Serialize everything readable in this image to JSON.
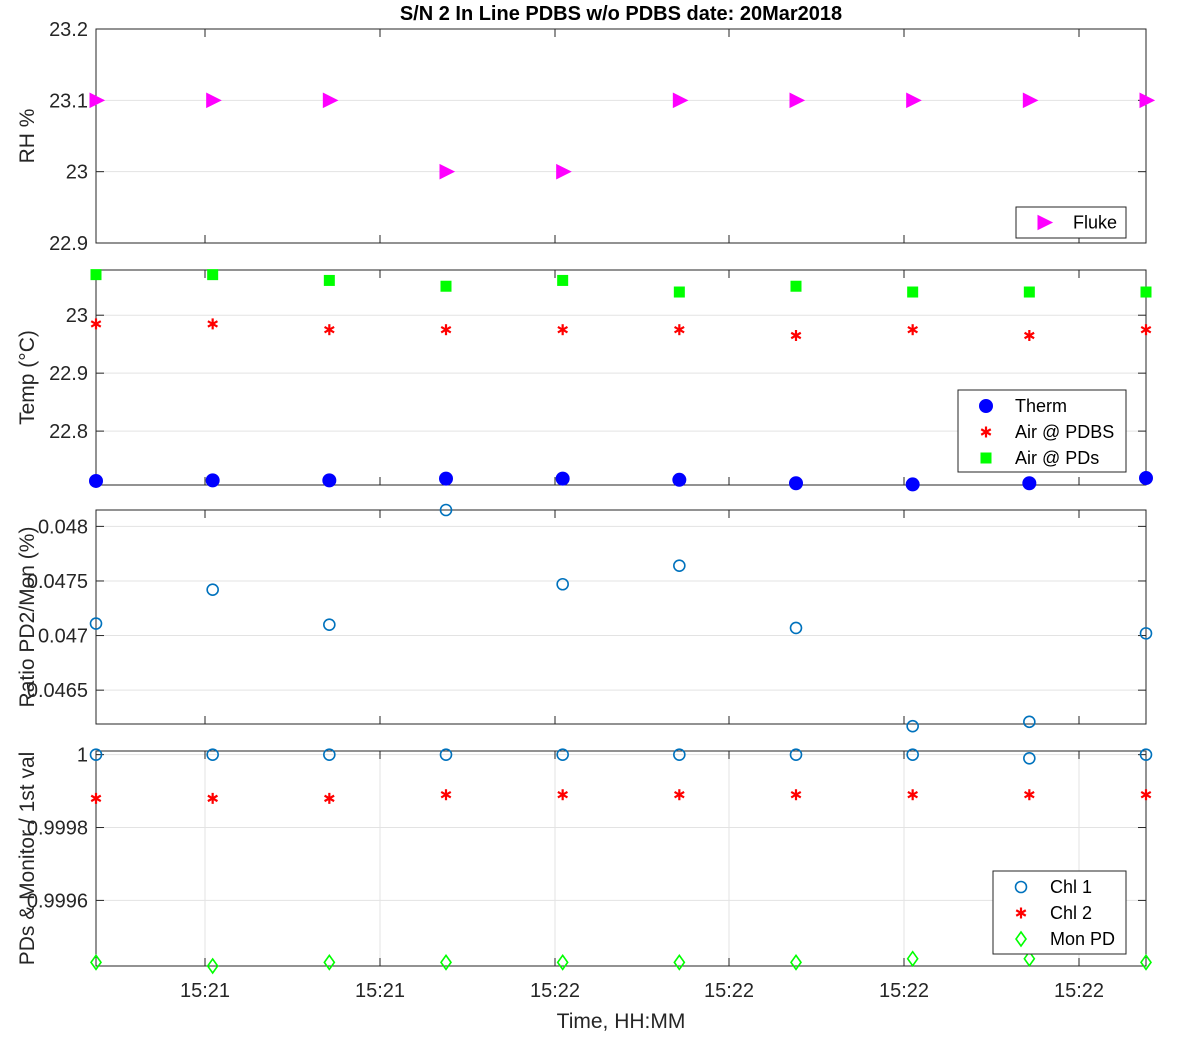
{
  "figure": {
    "title": "S/N 2 In Line PDBS w/o PDBS date: 20Mar2018",
    "xlabel": "Time, HH:MM",
    "xtick_labels": [
      "15:21",
      "15:21",
      "15:22",
      "15:22",
      "15:22",
      "15:22"
    ]
  },
  "chart_data": [
    {
      "type": "scatter",
      "ylabel": "RH %",
      "ylim": [
        22.9,
        23.2
      ],
      "yticks": [
        22.9,
        23,
        23.1,
        23.2
      ],
      "ytick_labels": [
        "22.9",
        "23",
        "23.1",
        "23.2"
      ],
      "grid": true,
      "legend_position": "bottom-right",
      "x_index": [
        0,
        1,
        2,
        3,
        4,
        5,
        6,
        7,
        8,
        9
      ],
      "series": [
        {
          "name": "Fluke",
          "marker": "triangle-right",
          "color": "#ff00ff",
          "values": [
            23.1,
            23.1,
            23.1,
            23.0,
            23.0,
            23.1,
            23.1,
            23.1,
            23.1,
            23.1
          ]
        }
      ]
    },
    {
      "type": "scatter",
      "ylabel": "Temp (°C)",
      "ylim": [
        22.707,
        23.078
      ],
      "yticks": [
        22.8,
        22.9,
        23
      ],
      "ytick_labels": [
        "22.8",
        "22.9",
        "23"
      ],
      "grid": true,
      "legend_position": "bottom-right",
      "x_index": [
        0,
        1,
        2,
        3,
        4,
        5,
        6,
        7,
        8,
        9
      ],
      "series": [
        {
          "name": "Therm",
          "marker": "filled-circle",
          "color": "#0000ff",
          "values": [
            22.714,
            22.715,
            22.715,
            22.718,
            22.718,
            22.716,
            22.71,
            22.708,
            22.71,
            22.719
          ]
        },
        {
          "name": "Air @ PDBS",
          "marker": "asterisk",
          "color": "#ff0000",
          "values": [
            22.985,
            22.985,
            22.975,
            22.975,
            22.975,
            22.975,
            22.965,
            22.975,
            22.965,
            22.975
          ]
        },
        {
          "name": "Air @ PDs",
          "marker": "filled-square",
          "color": "#00ff00",
          "values": [
            23.07,
            23.07,
            23.06,
            23.05,
            23.06,
            23.04,
            23.05,
            23.04,
            23.04,
            23.04
          ]
        }
      ]
    },
    {
      "type": "scatter",
      "ylabel": "Ratio PD2/Mon (%)",
      "ylim": [
        0.04619,
        0.04815
      ],
      "yticks": [
        0.0465,
        0.047,
        0.0475,
        0.048
      ],
      "ytick_labels": [
        "0.0465",
        "0.047",
        "0.0475",
        "0.048"
      ],
      "grid": true,
      "legend_position": "none",
      "x_index": [
        0,
        1,
        2,
        3,
        4,
        5,
        6,
        7,
        8,
        9
      ],
      "series": [
        {
          "name": "",
          "marker": "open-circle",
          "color": "#0072bd",
          "values": [
            0.04711,
            0.04742,
            0.0471,
            0.04815,
            0.04747,
            0.04764,
            0.04707,
            0.04617,
            0.04621,
            0.04702
          ]
        }
      ]
    },
    {
      "type": "scatter",
      "ylabel": "PDs & Monitor / 1st val",
      "ylim": [
        0.99942,
        1.00001
      ],
      "yticks": [
        0.9996,
        0.9998,
        1
      ],
      "ytick_labels": [
        "0.9996",
        "0.9998",
        "1"
      ],
      "grid": true,
      "legend_position": "bottom-right",
      "x_index": [
        0,
        1,
        2,
        3,
        4,
        5,
        6,
        7,
        8,
        9
      ],
      "series": [
        {
          "name": "Chl 1",
          "marker": "open-circle",
          "color": "#0072bd",
          "values": [
            1.0,
            1.0,
            1.0,
            1.0,
            1.0,
            1.0,
            1.0,
            1.0,
            0.99999,
            1.0
          ]
        },
        {
          "name": "Chl 2",
          "marker": "asterisk",
          "color": "#ff0000",
          "values": [
            0.99988,
            0.99988,
            0.99988,
            0.99989,
            0.99989,
            0.99989,
            0.99989,
            0.99989,
            0.99989,
            0.99989
          ]
        },
        {
          "name": "Mon PD",
          "marker": "open-diamond",
          "color": "#00ff00",
          "values": [
            0.99943,
            0.99942,
            0.99943,
            0.99943,
            0.99943,
            0.99943,
            0.99943,
            0.99944,
            0.99944,
            0.99943
          ]
        }
      ]
    }
  ]
}
